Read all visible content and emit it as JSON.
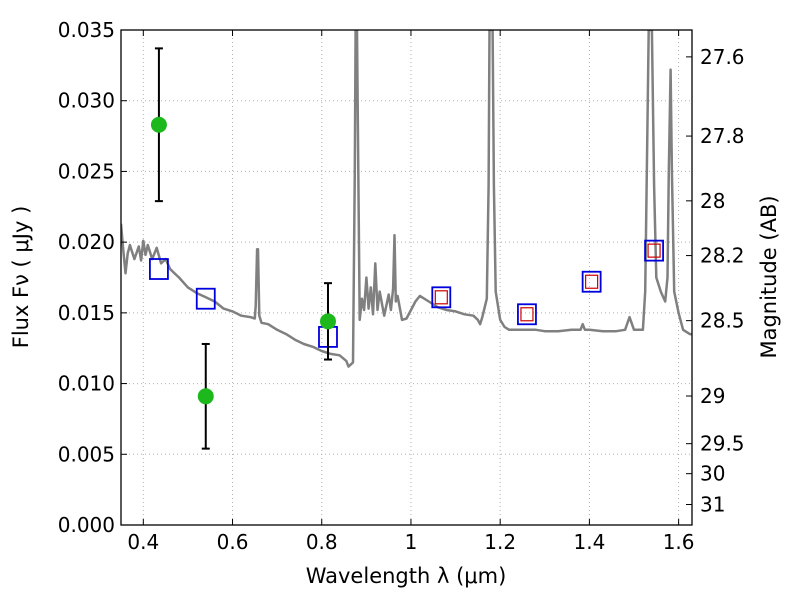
{
  "chart_data": {
    "type": "scatter",
    "title": "",
    "xlabel": "Wavelength  λ (μm)",
    "ylabel": "Flux  Fν  ( μJy )",
    "ylabel_right": "Magnitude (AB)",
    "xlim": [
      0.35,
      1.63
    ],
    "ylim": [
      0.0,
      0.035
    ],
    "grid": true,
    "x_ticks": [
      {
        "value": 0.4,
        "label": "0.4"
      },
      {
        "value": 0.6,
        "label": "0.6"
      },
      {
        "value": 0.8,
        "label": "0.8"
      },
      {
        "value": 1.0,
        "label": "1"
      },
      {
        "value": 1.2,
        "label": "1.2"
      },
      {
        "value": 1.4,
        "label": "1.4"
      },
      {
        "value": 1.6,
        "label": "1.6"
      }
    ],
    "y_ticks": [
      {
        "value": 0.0,
        "label": "0.000"
      },
      {
        "value": 0.005,
        "label": "0.005"
      },
      {
        "value": 0.01,
        "label": "0.010"
      },
      {
        "value": 0.015,
        "label": "0.015"
      },
      {
        "value": 0.02,
        "label": "0.020"
      },
      {
        "value": 0.025,
        "label": "0.025"
      },
      {
        "value": 0.03,
        "label": "0.030"
      },
      {
        "value": 0.035,
        "label": "0.035"
      }
    ],
    "right_ticks": [
      {
        "flux": 0.0331,
        "label": "27.6"
      },
      {
        "flux": 0.0275,
        "label": "27.8"
      },
      {
        "flux": 0.02292,
        "label": "28"
      },
      {
        "flux": 0.01905,
        "label": "28.2"
      },
      {
        "flux": 0.01445,
        "label": "28.5"
      },
      {
        "flux": 0.00912,
        "label": "29"
      },
      {
        "flux": 0.00575,
        "label": "29.5"
      },
      {
        "flux": 0.00363,
        "label": "30"
      },
      {
        "flux": 0.00145,
        "label": "31"
      }
    ],
    "colors": {
      "spectrum": "#808080",
      "observed": "#1cb81c",
      "model_outer": "#0000dd",
      "model_inner": "#cc0000",
      "grid": "#b0b0b0"
    },
    "spectrum": [
      [
        0.35,
        0.0213
      ],
      [
        0.355,
        0.0195
      ],
      [
        0.36,
        0.0178
      ],
      [
        0.365,
        0.0192
      ],
      [
        0.37,
        0.0198
      ],
      [
        0.38,
        0.0188
      ],
      [
        0.39,
        0.0197
      ],
      [
        0.395,
        0.0187
      ],
      [
        0.4,
        0.0201
      ],
      [
        0.405,
        0.0191
      ],
      [
        0.41,
        0.0198
      ],
      [
        0.42,
        0.0188
      ],
      [
        0.43,
        0.0196
      ],
      [
        0.44,
        0.0185
      ],
      [
        0.45,
        0.0188
      ],
      [
        0.46,
        0.0181
      ],
      [
        0.47,
        0.0178
      ],
      [
        0.48,
        0.0175
      ],
      [
        0.5,
        0.0168
      ],
      [
        0.52,
        0.0164
      ],
      [
        0.54,
        0.0161
      ],
      [
        0.56,
        0.0158
      ],
      [
        0.58,
        0.0153
      ],
      [
        0.6,
        0.0151
      ],
      [
        0.62,
        0.0148
      ],
      [
        0.64,
        0.0147
      ],
      [
        0.65,
        0.0146
      ],
      [
        0.652,
        0.0155
      ],
      [
        0.655,
        0.0195
      ],
      [
        0.657,
        0.0195
      ],
      [
        0.66,
        0.0148
      ],
      [
        0.665,
        0.0143
      ],
      [
        0.68,
        0.0142
      ],
      [
        0.7,
        0.0138
      ],
      [
        0.72,
        0.0135
      ],
      [
        0.74,
        0.0131
      ],
      [
        0.76,
        0.0128
      ],
      [
        0.78,
        0.0126
      ],
      [
        0.8,
        0.0123
      ],
      [
        0.82,
        0.0121
      ],
      [
        0.84,
        0.012
      ],
      [
        0.855,
        0.0116
      ],
      [
        0.86,
        0.0112
      ],
      [
        0.87,
        0.0115
      ],
      [
        0.874,
        0.025
      ],
      [
        0.876,
        0.035
      ],
      [
        0.879,
        0.035
      ],
      [
        0.882,
        0.025
      ],
      [
        0.885,
        0.0145
      ],
      [
        0.89,
        0.016
      ],
      [
        0.895,
        0.0152
      ],
      [
        0.9,
        0.0175
      ],
      [
        0.905,
        0.0153
      ],
      [
        0.91,
        0.0168
      ],
      [
        0.915,
        0.0149
      ],
      [
        0.92,
        0.0185
      ],
      [
        0.925,
        0.0152
      ],
      [
        0.93,
        0.0165
      ],
      [
        0.94,
        0.0148
      ],
      [
        0.95,
        0.0163
      ],
      [
        0.955,
        0.0152
      ],
      [
        0.96,
        0.0167
      ],
      [
        0.963,
        0.0205
      ],
      [
        0.966,
        0.0158
      ],
      [
        0.97,
        0.0162
      ],
      [
        0.98,
        0.0145
      ],
      [
        0.99,
        0.0146
      ],
      [
        1.0,
        0.0152
      ],
      [
        1.01,
        0.0158
      ],
      [
        1.02,
        0.0162
      ],
      [
        1.04,
        0.0158
      ],
      [
        1.06,
        0.0154
      ],
      [
        1.08,
        0.0152
      ],
      [
        1.1,
        0.0151
      ],
      [
        1.12,
        0.0149
      ],
      [
        1.14,
        0.0148
      ],
      [
        1.15,
        0.0145
      ],
      [
        1.155,
        0.0142
      ],
      [
        1.16,
        0.0147
      ],
      [
        1.17,
        0.016
      ],
      [
        1.174,
        0.024
      ],
      [
        1.176,
        0.035
      ],
      [
        1.183,
        0.035
      ],
      [
        1.186,
        0.024
      ],
      [
        1.19,
        0.0165
      ],
      [
        1.2,
        0.0145
      ],
      [
        1.21,
        0.014
      ],
      [
        1.22,
        0.0138
      ],
      [
        1.25,
        0.0138
      ],
      [
        1.28,
        0.0138
      ],
      [
        1.3,
        0.0137
      ],
      [
        1.33,
        0.0137
      ],
      [
        1.36,
        0.0138
      ],
      [
        1.38,
        0.0138
      ],
      [
        1.385,
        0.0142
      ],
      [
        1.39,
        0.0138
      ],
      [
        1.4,
        0.0138
      ],
      [
        1.43,
        0.0137
      ],
      [
        1.46,
        0.0137
      ],
      [
        1.48,
        0.0138
      ],
      [
        1.49,
        0.0147
      ],
      [
        1.5,
        0.0138
      ],
      [
        1.52,
        0.0138
      ],
      [
        1.525,
        0.0165
      ],
      [
        1.53,
        0.028
      ],
      [
        1.533,
        0.035
      ],
      [
        1.54,
        0.035
      ],
      [
        1.545,
        0.024
      ],
      [
        1.55,
        0.0175
      ],
      [
        1.56,
        0.0165
      ],
      [
        1.57,
        0.0158
      ],
      [
        1.575,
        0.0175
      ],
      [
        1.578,
        0.025
      ],
      [
        1.582,
        0.0322
      ],
      [
        1.585,
        0.025
      ],
      [
        1.59,
        0.0165
      ],
      [
        1.6,
        0.015
      ],
      [
        1.61,
        0.0138
      ],
      [
        1.625,
        0.0135
      ],
      [
        1.63,
        0.0135
      ]
    ],
    "observed": [
      {
        "x": 0.435,
        "y": 0.0283,
        "err_low": 0.0229,
        "err_high": 0.0337
      },
      {
        "x": 0.54,
        "y": 0.0091,
        "err_low": 0.0054,
        "err_high": 0.0128
      },
      {
        "x": 0.814,
        "y": 0.0144,
        "err_low": 0.0117,
        "err_high": 0.0171
      }
    ],
    "model_squares": [
      {
        "x": 0.435,
        "y": 0.0181,
        "inner": false
      },
      {
        "x": 0.54,
        "y": 0.016,
        "inner": false
      },
      {
        "x": 0.814,
        "y": 0.0133,
        "inner": false
      },
      {
        "x": 1.068,
        "y": 0.0161,
        "inner": true
      },
      {
        "x": 1.26,
        "y": 0.0149,
        "inner": true
      },
      {
        "x": 1.405,
        "y": 0.0172,
        "inner": true
      },
      {
        "x": 1.545,
        "y": 0.0194,
        "inner": true
      }
    ]
  }
}
